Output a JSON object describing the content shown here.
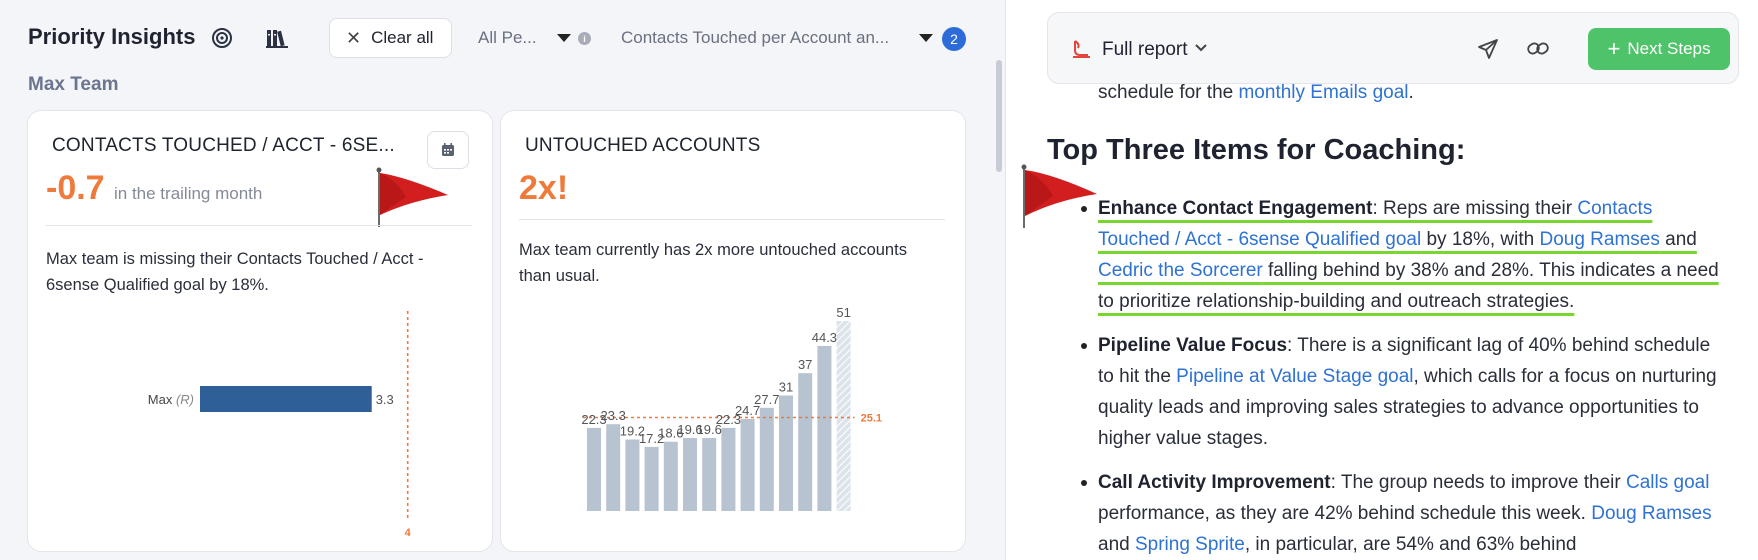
{
  "left": {
    "title": "Priority Insights",
    "clear_all_label": "Clear all",
    "filter_people": "All Pe...",
    "filter_metric": "Contacts Touched per Account an...",
    "filter_count": "2",
    "team_name": "Max Team"
  },
  "card_contacts": {
    "title": "CONTACTS TOUCHED / ACCT - 6SE...",
    "big_value": "-0.7",
    "big_caption": "in the trailing month",
    "description": "Max team is missing their Contacts Touched / Acct - 6sense Qualified goal by 18%.",
    "chart_data": {
      "type": "bar",
      "orientation": "horizontal",
      "categories": [
        "Max"
      ],
      "category_tags": [
        "(R)"
      ],
      "values": [
        3.3
      ],
      "value_labels": [
        "3.3"
      ],
      "goal": 4,
      "goal_label": "4",
      "xlim": [
        0,
        4.2
      ],
      "colors": {
        "bar": "#2f5f97",
        "goal": "#ee7a3b"
      }
    }
  },
  "card_untouched": {
    "title": "UNTOUCHED ACCOUNTS",
    "big_value": "2x!",
    "description": "Max team currently has 2x more untouched accounts than usual.",
    "chart_data": {
      "type": "bar",
      "values": [
        22.3,
        23.3,
        19.2,
        17.2,
        18.6,
        19.6,
        19.6,
        22.3,
        24.7,
        27.7,
        31,
        37,
        44.3,
        51
      ],
      "value_labels": [
        "22.3",
        "23.3",
        "19.2",
        "17.2",
        "18.6",
        "19.6",
        "19.6",
        "22.3",
        "24.7",
        "27.7",
        "31",
        "37",
        "44.3",
        "51"
      ],
      "average": 25.1,
      "average_label": "25.1",
      "ylim": [
        0,
        51
      ],
      "last_bar_partial": true,
      "colors": {
        "bar": "#b8c3d1",
        "partial": "#dde3eb",
        "average": "#ee7a3b"
      }
    }
  },
  "report": {
    "label": "Full report",
    "next_steps_label": "Next Steps",
    "cut_line": {
      "t1": "schedule for the ",
      "l1": "monthly Emails goal",
      "t2": "."
    },
    "heading": "Top Three Items for Coaching:",
    "item1": {
      "title": "Enhance Contact Engagement",
      "t1": ": Reps are missing their ",
      "l1": "Contacts Touched / Acct - 6sense Qualified goal",
      "t2": " by 18%, with ",
      "l2": "Doug Ramses",
      "t3": " and ",
      "l3": "Cedric the Sorcerer",
      "t4": " falling behind by 38% and 28%. This indicates a need to prioritize relationship-building and outreach strategies."
    },
    "item2": {
      "title": "Pipeline Value Focus",
      "t1": ": There is a significant lag of 40% behind schedule to hit the ",
      "l1": "Pipeline at Value Stage goal",
      "t2": ", which calls for a focus on nurturing quality leads and improving sales strategies to advance opportunities to higher value stages."
    },
    "item3": {
      "title": "Call Activity Improvement",
      "t1": ": The group needs to improve their ",
      "l1": "Calls goal",
      "t2": " performance, as they are 42% behind schedule this week. ",
      "l2": "Doug Ramses",
      "t3": " and ",
      "l3": "Spring Sprite",
      "t4": ", in particular, are 54% and 63% behind"
    }
  },
  "icons": {
    "target": "target-icon",
    "library": "library-books-icon",
    "calendar": "calendar-icon",
    "flag": "red-flag-icon",
    "report": "report-icon",
    "send": "send-icon",
    "link": "link-icon"
  },
  "colors": {
    "accent_orange": "#ee7a3b",
    "link_blue": "#2e72d2",
    "highlight_green": "#78d630",
    "next_steps_green": "#4fc36a",
    "badge_blue": "#2d6cd8",
    "flag_red": "#d21e1e"
  }
}
